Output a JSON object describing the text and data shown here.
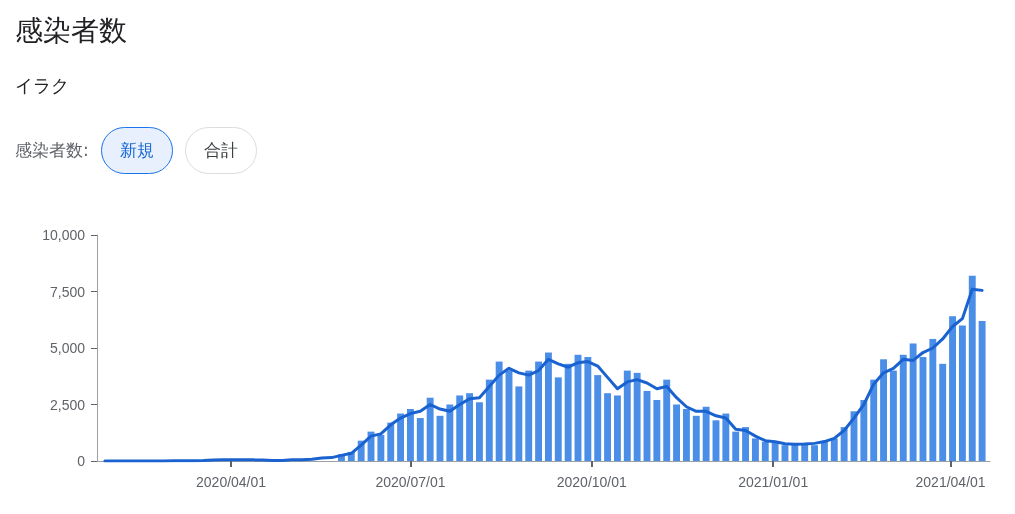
{
  "chart_data": {
    "type": "bar",
    "title": "感染者数",
    "subtitle": "イラク",
    "annotations": [
      "感染者数:",
      "新規",
      "合計"
    ],
    "x": [
      "2020-01-28",
      "2020-02-02",
      "2020-02-07",
      "2020-02-12",
      "2020-02-17",
      "2020-02-22",
      "2020-02-27",
      "2020-03-03",
      "2020-03-08",
      "2020-03-13",
      "2020-03-18",
      "2020-03-23",
      "2020-03-28",
      "2020-04-02",
      "2020-04-07",
      "2020-04-12",
      "2020-04-17",
      "2020-04-22",
      "2020-04-27",
      "2020-05-02",
      "2020-05-07",
      "2020-05-12",
      "2020-05-17",
      "2020-05-22",
      "2020-05-27",
      "2020-06-01",
      "2020-06-06",
      "2020-06-11",
      "2020-06-16",
      "2020-06-21",
      "2020-06-26",
      "2020-07-01",
      "2020-07-06",
      "2020-07-11",
      "2020-07-16",
      "2020-07-21",
      "2020-07-26",
      "2020-07-31",
      "2020-08-05",
      "2020-08-10",
      "2020-08-15",
      "2020-08-20",
      "2020-08-25",
      "2020-08-30",
      "2020-09-04",
      "2020-09-09",
      "2020-09-14",
      "2020-09-19",
      "2020-09-24",
      "2020-09-29",
      "2020-10-04",
      "2020-10-09",
      "2020-10-14",
      "2020-10-19",
      "2020-10-24",
      "2020-10-29",
      "2020-11-03",
      "2020-11-08",
      "2020-11-13",
      "2020-11-18",
      "2020-11-23",
      "2020-11-28",
      "2020-12-03",
      "2020-12-08",
      "2020-12-13",
      "2020-12-18",
      "2020-12-23",
      "2020-12-28",
      "2021-01-02",
      "2021-01-07",
      "2021-01-12",
      "2021-01-17",
      "2021-01-22",
      "2021-01-27",
      "2021-02-01",
      "2021-02-06",
      "2021-02-11",
      "2021-02-16",
      "2021-02-21",
      "2021-02-26",
      "2021-03-03",
      "2021-03-08",
      "2021-03-13",
      "2021-03-18",
      "2021-03-23",
      "2021-03-28",
      "2021-04-02",
      "2021-04-07",
      "2021-04-12",
      "2021-04-17"
    ],
    "series": [
      {
        "color": "#4a8ee8",
        "values": [
          0,
          0,
          0,
          0,
          0,
          0,
          null,
          null,
          null,
          null,
          null,
          null,
          null,
          null,
          null,
          null,
          null,
          null,
          null,
          null,
          null,
          null,
          null,
          null,
          300,
          400,
          900,
          1300,
          1150,
          1700,
          2100,
          2300,
          1900,
          2800,
          2000,
          2500,
          2900,
          3000,
          2600,
          3600,
          4400,
          4000,
          3300,
          4000,
          4400,
          4800,
          3700,
          4300,
          4700,
          4600,
          3800,
          3000,
          2900,
          4000,
          3900,
          3100,
          2700,
          3600,
          2500,
          2300,
          2000,
          2400,
          1800,
          2100,
          1300,
          1500,
          1000,
          850,
          800,
          700,
          750,
          800,
          700,
          850,
          1000,
          1500,
          2200,
          2700,
          3600,
          4500,
          4000,
          4700,
          5200,
          4600,
          5400,
          4300,
          6400,
          6000,
          8200,
          6200
        ]
      },
      {
        "type": "line",
        "color": "#1a62d0",
        "values": [
          0,
          0,
          0,
          0,
          0,
          0,
          0,
          10,
          10,
          10,
          20,
          40,
          50,
          50,
          50,
          50,
          40,
          20,
          20,
          50,
          60,
          80,
          130,
          150,
          250,
          340,
          700,
          1100,
          1200,
          1600,
          1900,
          2100,
          2200,
          2500,
          2300,
          2200,
          2500,
          2750,
          2800,
          3300,
          3800,
          4100,
          3900,
          3800,
          4000,
          4500,
          4300,
          4150,
          4350,
          4400,
          4200,
          3700,
          3200,
          3500,
          3600,
          3450,
          3200,
          3300,
          2800,
          2400,
          2200,
          2200,
          2000,
          1900,
          1400,
          1350,
          1100,
          900,
          850,
          760,
          740,
          750,
          780,
          860,
          1000,
          1350,
          1900,
          2500,
          3400,
          3900,
          4100,
          4500,
          4450,
          4800,
          5000,
          5400,
          5950,
          6300,
          7600,
          7550
        ]
      }
    ],
    "xlim": [
      "2020-01-24",
      "2021-04-21"
    ],
    "xticks": [
      {
        "value": "2020-04-01",
        "label": "2020/04/01"
      },
      {
        "value": "2020-07-01",
        "label": "2020/07/01"
      },
      {
        "value": "2020-10-01",
        "label": "2020/10/01"
      },
      {
        "value": "2021-01-01",
        "label": "2021/01/01"
      },
      {
        "value": "2021-04-01",
        "label": "2021/04/01"
      }
    ],
    "ylim": [
      0,
      10000
    ],
    "yticks": [
      {
        "value": 0,
        "label": "0"
      },
      {
        "value": 2500,
        "label": "2,500"
      },
      {
        "value": 5000,
        "label": "5,000"
      },
      {
        "value": 7500,
        "label": "7,500"
      },
      {
        "value": 10000,
        "label": "10,000"
      }
    ],
    "grid": false,
    "marker": "none",
    "line_style": "solid"
  }
}
